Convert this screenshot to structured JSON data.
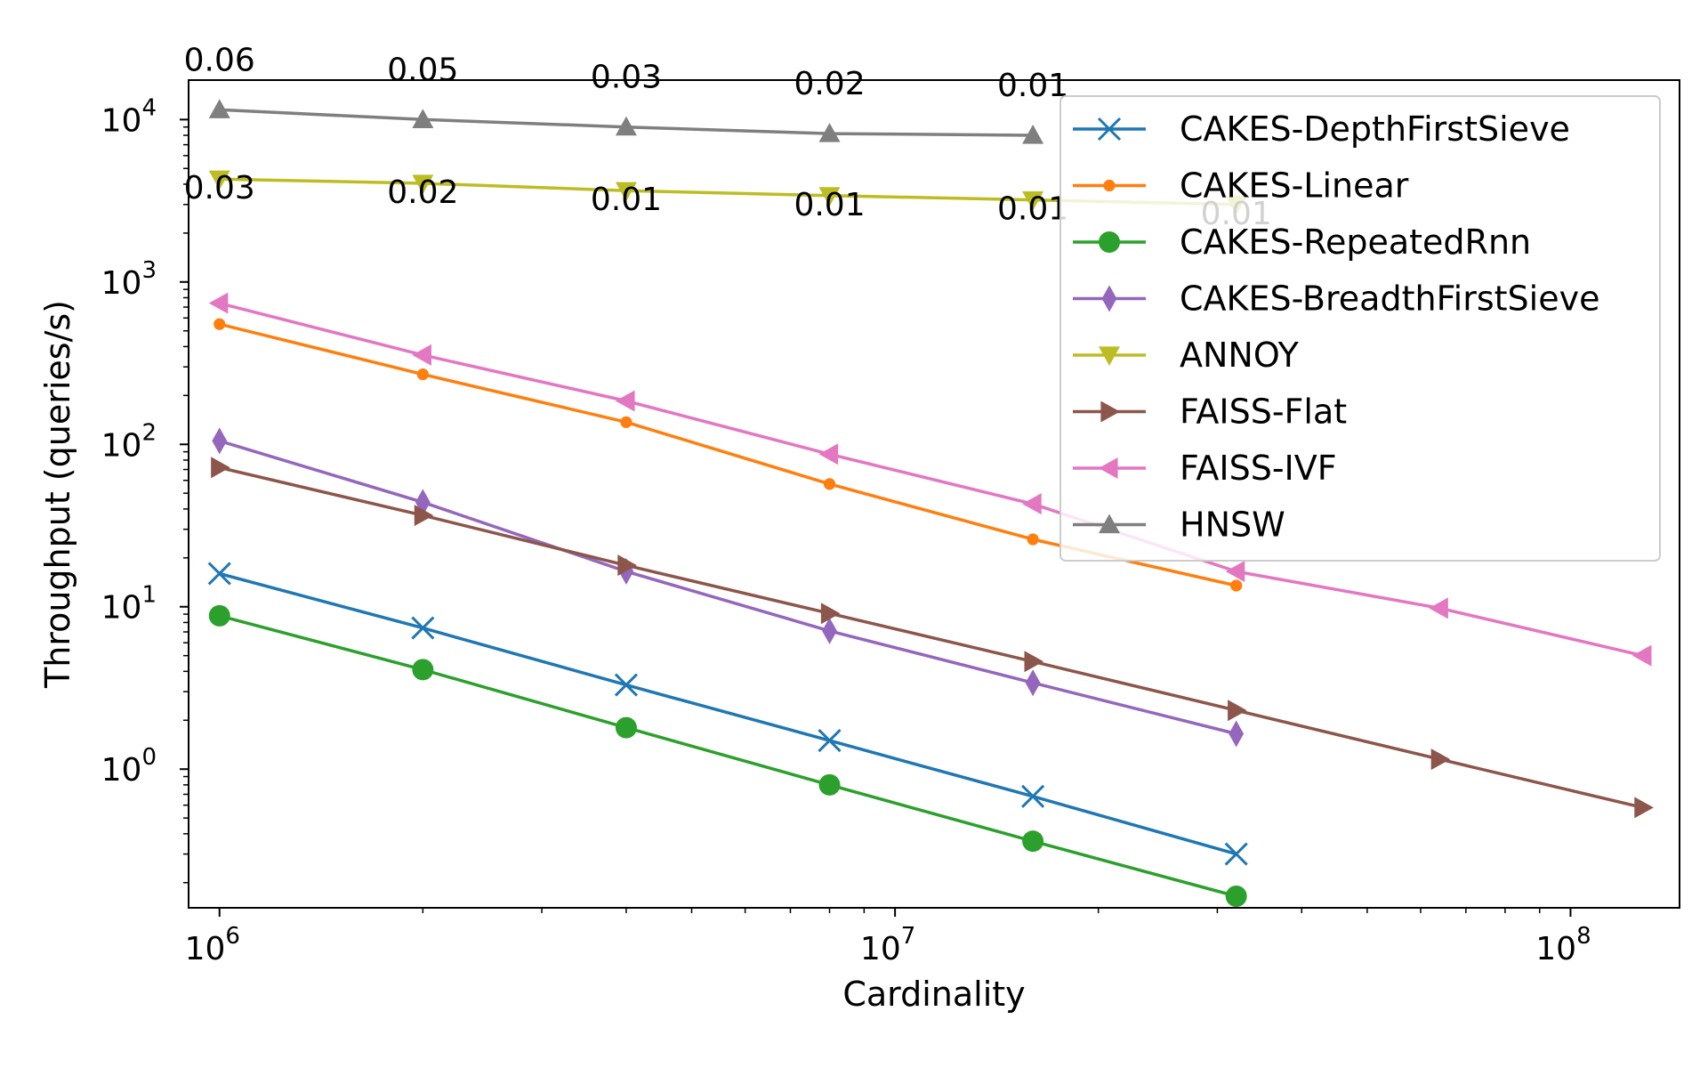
{
  "chart_data": {
    "type": "line",
    "title": "",
    "xlabel": "Cardinality",
    "ylabel": "Throughput (queries/s)",
    "xscale": "log",
    "yscale": "log",
    "xlim": [
      900000,
      145000000
    ],
    "ylim": [
      0.14,
      17500
    ],
    "grid": false,
    "legend_position": "top-right",
    "x_ticks": [
      {
        "value": 1000000,
        "base": "10",
        "exp": "6"
      },
      {
        "value": 10000000,
        "base": "10",
        "exp": "7"
      },
      {
        "value": 100000000,
        "base": "10",
        "exp": "8"
      }
    ],
    "y_ticks": [
      {
        "value": 1,
        "base": "10",
        "exp": "0"
      },
      {
        "value": 10,
        "base": "10",
        "exp": "1"
      },
      {
        "value": 100,
        "base": "10",
        "exp": "2"
      },
      {
        "value": 1000,
        "base": "10",
        "exp": "3"
      },
      {
        "value": 10000,
        "base": "10",
        "exp": "4"
      }
    ],
    "series": [
      {
        "name": "CAKES-DepthFirstSieve",
        "color": "#1f77b4",
        "marker": "x",
        "x": [
          1000000,
          2000000,
          4000000,
          8000000,
          16000000,
          32000000
        ],
        "y": [
          16,
          7.4,
          3.3,
          1.5,
          0.68,
          0.3
        ]
      },
      {
        "name": "CAKES-Linear",
        "color": "#ff7f0e",
        "marker": "point",
        "x": [
          1000000,
          2000000,
          4000000,
          8000000,
          16000000,
          32000000
        ],
        "y": [
          550,
          270,
          137,
          57,
          26,
          13.5
        ]
      },
      {
        "name": "CAKES-RepeatedRnn",
        "color": "#2ca02c",
        "marker": "circle",
        "x": [
          1000000,
          2000000,
          4000000,
          8000000,
          16000000,
          32000000
        ],
        "y": [
          8.8,
          4.1,
          1.8,
          0.8,
          0.36,
          0.165
        ]
      },
      {
        "name": "CAKES-BreadthFirstSieve",
        "color": "#9467bd",
        "marker": "thin-diamond",
        "x": [
          1000000,
          2000000,
          4000000,
          8000000,
          16000000,
          32000000
        ],
        "y": [
          105,
          44,
          16.5,
          7.1,
          3.4,
          1.65
        ]
      },
      {
        "name": "ANNOY",
        "color": "#bcbd22",
        "marker": "triangle-down",
        "x": [
          1000000,
          2000000,
          4000000,
          8000000,
          16000000,
          32000000
        ],
        "y": [
          4300,
          4050,
          3650,
          3400,
          3200,
          3000
        ]
      },
      {
        "name": "FAISS-Flat",
        "color": "#8c564b",
        "marker": "triangle-right",
        "x": [
          1000000,
          2000000,
          4000000,
          8000000,
          16000000,
          32000000,
          64000000,
          128000000
        ],
        "y": [
          72,
          36.5,
          18,
          9.1,
          4.6,
          2.3,
          1.15,
          0.58
        ]
      },
      {
        "name": "FAISS-IVF",
        "color": "#e377c2",
        "marker": "triangle-left",
        "x": [
          1000000,
          2000000,
          4000000,
          8000000,
          16000000,
          32000000,
          64000000,
          128000000
        ],
        "y": [
          740,
          355,
          185,
          87,
          43,
          16.5,
          9.8,
          5
        ]
      },
      {
        "name": "HNSW",
        "color": "#7f7f7f",
        "marker": "triangle-up",
        "x": [
          1000000,
          2000000,
          4000000,
          8000000,
          16000000
        ],
        "y": [
          11500,
          10000,
          9000,
          8200,
          8000
        ]
      }
    ],
    "annotations": [
      {
        "text": "0.06",
        "x": 1000000,
        "y": 11500,
        "row": "upper"
      },
      {
        "text": "0.05",
        "x": 2000000,
        "y": 10000,
        "row": "upper"
      },
      {
        "text": "0.03",
        "x": 4000000,
        "y": 9000,
        "row": "upper"
      },
      {
        "text": "0.02",
        "x": 8000000,
        "y": 8200,
        "row": "upper"
      },
      {
        "text": "0.01",
        "x": 16000000,
        "y": 8000,
        "row": "upper"
      },
      {
        "text": "0.03",
        "x": 1000000,
        "y": 4300,
        "row": "lower"
      },
      {
        "text": "0.02",
        "x": 2000000,
        "y": 4050,
        "row": "lower"
      },
      {
        "text": "0.01",
        "x": 4000000,
        "y": 3650,
        "row": "lower"
      },
      {
        "text": "0.01",
        "x": 8000000,
        "y": 3400,
        "row": "lower"
      },
      {
        "text": "0.01",
        "x": 16000000,
        "y": 3200,
        "row": "lower"
      },
      {
        "text": "0.01",
        "x": 32000000,
        "y": 3000,
        "row": "lower"
      }
    ]
  }
}
